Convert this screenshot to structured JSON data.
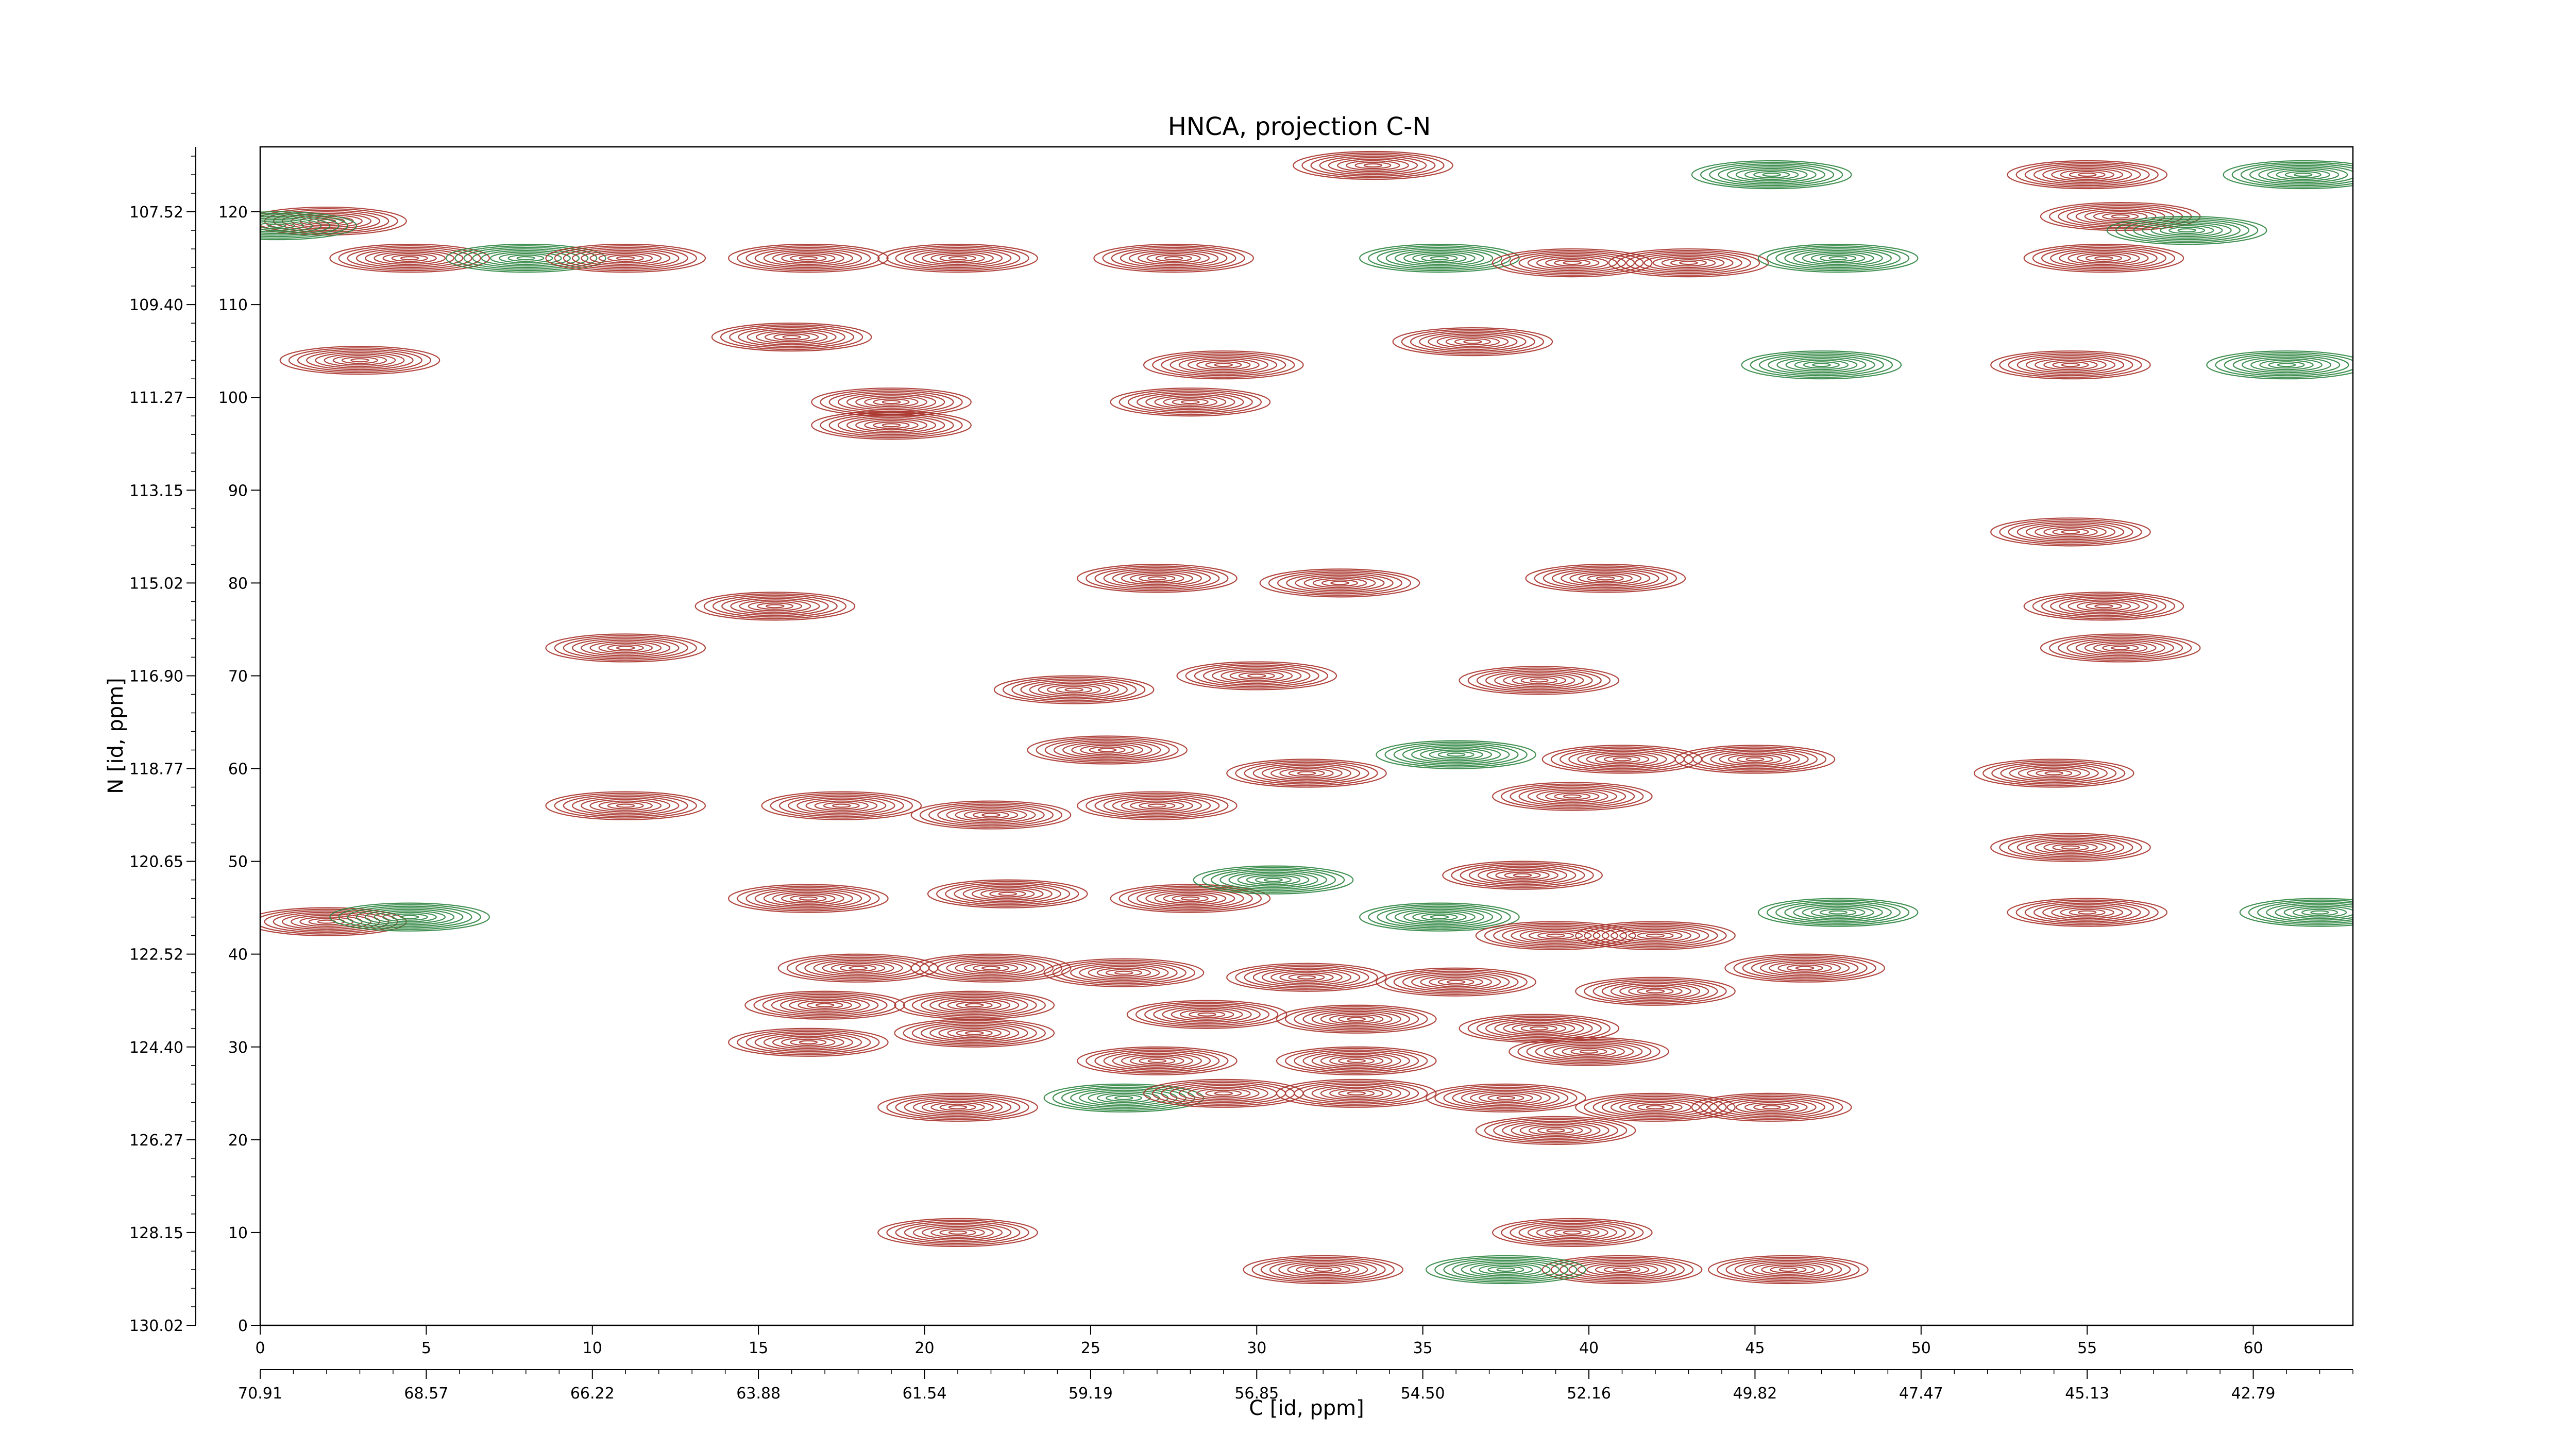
{
  "chart_data": {
    "type": "contour",
    "title": "HNCA, projection C-N",
    "xlabel": "C [id, ppm]",
    "ylabel": "N [id, ppm]",
    "x_index": {
      "range": [
        0,
        63
      ],
      "ticks": [
        "0",
        "5",
        "10",
        "15",
        "20",
        "25",
        "30",
        "35",
        "40",
        "45",
        "50",
        "55",
        "60"
      ]
    },
    "x_ppm": {
      "ticks": [
        "70.91",
        "68.57",
        "66.22",
        "63.88",
        "61.54",
        "59.19",
        "56.85",
        "54.50",
        "52.16",
        "49.82",
        "47.47",
        "45.13",
        "42.79"
      ]
    },
    "y_index": {
      "range": [
        0,
        127
      ],
      "ticks": [
        "0",
        "10",
        "20",
        "30",
        "40",
        "50",
        "60",
        "70",
        "80",
        "90",
        "100",
        "110",
        "120"
      ]
    },
    "y_ppm": {
      "ticks": [
        "130.02",
        "128.15",
        "126.27",
        "124.40",
        "122.52",
        "120.65",
        "118.77",
        "116.90",
        "115.02",
        "113.15",
        "111.27",
        "109.40",
        "107.52"
      ]
    },
    "series": [
      {
        "sign": "positive",
        "color": "#a8332b"
      },
      {
        "sign": "negative",
        "color": "#2e8540"
      }
    ],
    "peaks": [
      {
        "x": 2,
        "y": 119,
        "sign": "positive"
      },
      {
        "x": 4.5,
        "y": 115,
        "sign": "positive"
      },
      {
        "x": 8,
        "y": 115,
        "sign": "negative"
      },
      {
        "x": 11,
        "y": 115,
        "sign": "positive"
      },
      {
        "x": 16.5,
        "y": 115,
        "sign": "positive"
      },
      {
        "x": 21,
        "y": 115,
        "sign": "positive"
      },
      {
        "x": 27.5,
        "y": 115,
        "sign": "positive"
      },
      {
        "x": 35.5,
        "y": 115,
        "sign": "negative"
      },
      {
        "x": 39.5,
        "y": 114.5,
        "sign": "positive"
      },
      {
        "x": 43,
        "y": 114.5,
        "sign": "positive"
      },
      {
        "x": 47.5,
        "y": 115,
        "sign": "negative"
      },
      {
        "x": 55.5,
        "y": 115,
        "sign": "positive"
      },
      {
        "x": 55,
        "y": 124,
        "sign": "positive"
      },
      {
        "x": 56,
        "y": 119.5,
        "sign": "positive"
      },
      {
        "x": 33.5,
        "y": 125,
        "sign": "positive"
      },
      {
        "x": 16,
        "y": 106.5,
        "sign": "positive"
      },
      {
        "x": 19,
        "y": 99.5,
        "sign": "positive"
      },
      {
        "x": 19,
        "y": 97,
        "sign": "positive"
      },
      {
        "x": 29,
        "y": 103.5,
        "sign": "positive"
      },
      {
        "x": 28,
        "y": 99.5,
        "sign": "positive"
      },
      {
        "x": 54.5,
        "y": 103.5,
        "sign": "positive"
      },
      {
        "x": 47,
        "y": 103.5,
        "sign": "negative"
      },
      {
        "x": 61,
        "y": 103.5,
        "sign": "negative"
      },
      {
        "x": 36.5,
        "y": 106,
        "sign": "positive"
      },
      {
        "x": 3,
        "y": 104,
        "sign": "positive"
      },
      {
        "x": 27,
        "y": 80.5,
        "sign": "positive"
      },
      {
        "x": 32.5,
        "y": 80,
        "sign": "positive"
      },
      {
        "x": 40.5,
        "y": 80.5,
        "sign": "positive"
      },
      {
        "x": 54.5,
        "y": 85.5,
        "sign": "positive"
      },
      {
        "x": 55.5,
        "y": 77.5,
        "sign": "positive"
      },
      {
        "x": 56,
        "y": 73,
        "sign": "positive"
      },
      {
        "x": 15.5,
        "y": 77.5,
        "sign": "positive"
      },
      {
        "x": 11,
        "y": 73,
        "sign": "positive"
      },
      {
        "x": 38.5,
        "y": 69.5,
        "sign": "positive"
      },
      {
        "x": 24.5,
        "y": 68.5,
        "sign": "positive"
      },
      {
        "x": 30,
        "y": 70,
        "sign": "positive"
      },
      {
        "x": 25.5,
        "y": 62,
        "sign": "positive"
      },
      {
        "x": 31.5,
        "y": 59.5,
        "sign": "positive"
      },
      {
        "x": 41,
        "y": 61,
        "sign": "positive"
      },
      {
        "x": 45,
        "y": 61,
        "sign": "positive"
      },
      {
        "x": 36,
        "y": 61.5,
        "sign": "negative"
      },
      {
        "x": 11,
        "y": 56,
        "sign": "positive"
      },
      {
        "x": 17.5,
        "y": 56,
        "sign": "positive"
      },
      {
        "x": 22,
        "y": 55,
        "sign": "positive"
      },
      {
        "x": 27,
        "y": 56,
        "sign": "positive"
      },
      {
        "x": 39.5,
        "y": 57,
        "sign": "positive"
      },
      {
        "x": 54,
        "y": 59.5,
        "sign": "positive"
      },
      {
        "x": 54.5,
        "y": 51.5,
        "sign": "positive"
      },
      {
        "x": 16.5,
        "y": 46,
        "sign": "positive"
      },
      {
        "x": 22.5,
        "y": 46.5,
        "sign": "positive"
      },
      {
        "x": 28,
        "y": 46,
        "sign": "positive"
      },
      {
        "x": 30.5,
        "y": 48,
        "sign": "negative"
      },
      {
        "x": 38,
        "y": 48.5,
        "sign": "positive"
      },
      {
        "x": 55,
        "y": 44.5,
        "sign": "positive"
      },
      {
        "x": 62,
        "y": 44.5,
        "sign": "negative"
      },
      {
        "x": 47.5,
        "y": 44.5,
        "sign": "negative"
      },
      {
        "x": 2,
        "y": 43.5,
        "sign": "positive"
      },
      {
        "x": 4.5,
        "y": 44,
        "sign": "negative"
      },
      {
        "x": 35.5,
        "y": 44,
        "sign": "negative"
      },
      {
        "x": 39,
        "y": 42,
        "sign": "positive"
      },
      {
        "x": 42,
        "y": 42,
        "sign": "positive"
      },
      {
        "x": 18,
        "y": 38.5,
        "sign": "positive"
      },
      {
        "x": 22,
        "y": 38.5,
        "sign": "positive"
      },
      {
        "x": 26,
        "y": 38,
        "sign": "positive"
      },
      {
        "x": 31.5,
        "y": 37.5,
        "sign": "positive"
      },
      {
        "x": 36,
        "y": 37,
        "sign": "positive"
      },
      {
        "x": 42,
        "y": 36,
        "sign": "positive"
      },
      {
        "x": 46.5,
        "y": 38.5,
        "sign": "positive"
      },
      {
        "x": 17,
        "y": 34.5,
        "sign": "positive"
      },
      {
        "x": 21.5,
        "y": 34.5,
        "sign": "positive"
      },
      {
        "x": 28.5,
        "y": 33.5,
        "sign": "positive"
      },
      {
        "x": 33,
        "y": 33,
        "sign": "positive"
      },
      {
        "x": 16.5,
        "y": 30.5,
        "sign": "positive"
      },
      {
        "x": 21.5,
        "y": 31.5,
        "sign": "positive"
      },
      {
        "x": 38.5,
        "y": 32,
        "sign": "positive"
      },
      {
        "x": 40,
        "y": 29.5,
        "sign": "positive"
      },
      {
        "x": 27,
        "y": 28.5,
        "sign": "positive"
      },
      {
        "x": 33,
        "y": 28.5,
        "sign": "positive"
      },
      {
        "x": 21,
        "y": 23.5,
        "sign": "positive"
      },
      {
        "x": 26,
        "y": 24.5,
        "sign": "negative"
      },
      {
        "x": 29,
        "y": 25,
        "sign": "positive"
      },
      {
        "x": 33,
        "y": 25,
        "sign": "positive"
      },
      {
        "x": 37.5,
        "y": 24.5,
        "sign": "positive"
      },
      {
        "x": 42,
        "y": 23.5,
        "sign": "positive"
      },
      {
        "x": 45.5,
        "y": 23.5,
        "sign": "positive"
      },
      {
        "x": 39,
        "y": 21,
        "sign": "positive"
      },
      {
        "x": 21,
        "y": 10,
        "sign": "positive"
      },
      {
        "x": 39.5,
        "y": 10,
        "sign": "positive"
      },
      {
        "x": 32,
        "y": 6,
        "sign": "positive"
      },
      {
        "x": 41,
        "y": 6,
        "sign": "positive"
      },
      {
        "x": 46,
        "y": 6,
        "sign": "positive"
      },
      {
        "x": 37.5,
        "y": 6,
        "sign": "negative"
      },
      {
        "x": 61.5,
        "y": 124,
        "sign": "negative"
      },
      {
        "x": 0.5,
        "y": 118.5,
        "sign": "negative"
      },
      {
        "x": 45.5,
        "y": 124,
        "sign": "negative"
      },
      {
        "x": 58,
        "y": 118,
        "sign": "negative"
      }
    ]
  }
}
